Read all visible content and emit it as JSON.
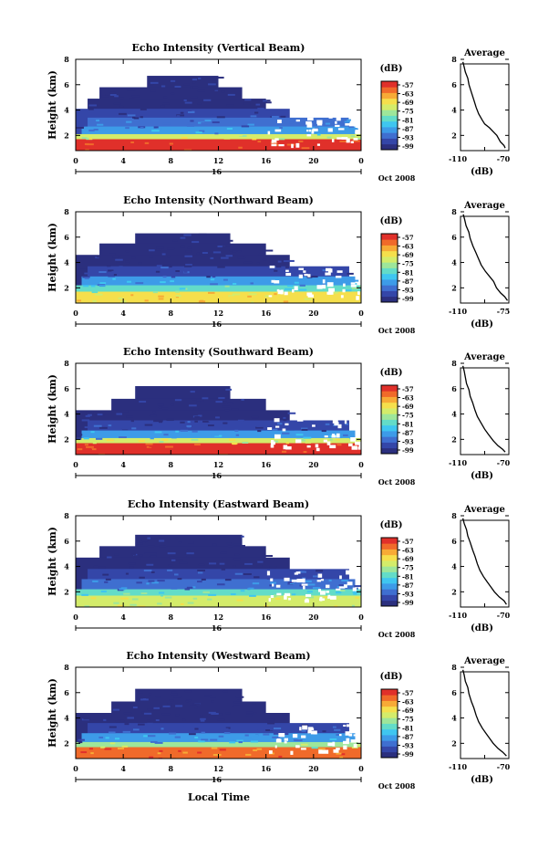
{
  "figure": {
    "bottom_xlabel": "Local Time"
  },
  "colors": {
    "colormap": [
      "#2b2f7e",
      "#3446a8",
      "#3f6fd0",
      "#3d9be8",
      "#3fc6f0",
      "#63dcc8",
      "#9ee69a",
      "#d4ec6a",
      "#f5df4c",
      "#f7aa36",
      "#f06a2a",
      "#e0302a"
    ]
  },
  "chart_data": [
    {
      "type": "heatmap",
      "title": "Echo Intensity (Vertical Beam)",
      "ylabel": "Height (km)",
      "xlabel": "Oct 2008",
      "x_ticks": [
        "0",
        "4",
        "8",
        "12",
        "16",
        "20",
        "0"
      ],
      "x_date": "16",
      "xlim": [
        0,
        24
      ],
      "y_ticks": [
        "2",
        "4",
        "6",
        "8"
      ],
      "ylim": [
        0.8,
        8
      ],
      "colorbar": {
        "unit": "(dB)",
        "ticks": [
          "-57",
          "-63",
          "-69",
          "-75",
          "-81",
          "-87",
          "-93",
          "-99"
        ]
      },
      "layers": [
        {
          "h": 1.0,
          "x0": 0,
          "x1": 24,
          "level": 11
        },
        {
          "h": 1.4,
          "x0": 0,
          "x1": 24,
          "level": 7
        },
        {
          "h": 2.0,
          "x0": 0.5,
          "x1": 23.5,
          "level": 3
        },
        {
          "h": 2.7,
          "x0": 1,
          "x1": 23,
          "level": 2
        },
        {
          "h": 3.4,
          "x0": 0,
          "x1": 18,
          "level": 1
        },
        {
          "h": 4.2,
          "x0": 1,
          "x1": 16,
          "level": 0
        },
        {
          "h": 5.1,
          "x0": 2,
          "x1": 14,
          "level": 0
        },
        {
          "h": 6.0,
          "x0": 6,
          "x1": 12,
          "level": 0
        }
      ]
    },
    {
      "type": "heatmap",
      "title": "Echo Intensity (Northward Beam)",
      "ylabel": "Height (km)",
      "xlabel": "Oct 2008",
      "x_ticks": [
        "0",
        "4",
        "8",
        "12",
        "16",
        "20",
        "0"
      ],
      "x_date": "16",
      "xlim": [
        0,
        24
      ],
      "y_ticks": [
        "2",
        "4",
        "6",
        "8"
      ],
      "ylim": [
        0.8,
        8
      ],
      "colorbar": {
        "unit": "(dB)",
        "ticks": [
          "-57",
          "-63",
          "-69",
          "-75",
          "-81",
          "-87",
          "-93",
          "-99"
        ]
      },
      "layers": [
        {
          "h": 1.0,
          "x0": 0,
          "x1": 24,
          "level": 8
        },
        {
          "h": 1.5,
          "x0": 0,
          "x1": 24,
          "level": 5
        },
        {
          "h": 2.2,
          "x0": 0.5,
          "x1": 23.5,
          "level": 3
        },
        {
          "h": 3.0,
          "x0": 1,
          "x1": 23,
          "level": 1
        },
        {
          "h": 3.9,
          "x0": 0,
          "x1": 18,
          "level": 0
        },
        {
          "h": 4.8,
          "x0": 2,
          "x1": 16,
          "level": 0
        },
        {
          "h": 5.6,
          "x0": 5,
          "x1": 13,
          "level": 0
        }
      ]
    },
    {
      "type": "heatmap",
      "title": "Echo Intensity (Southward Beam)",
      "ylabel": "Height (km)",
      "xlabel": "Oct 2008",
      "x_ticks": [
        "0",
        "4",
        "8",
        "12",
        "16",
        "20",
        "0"
      ],
      "x_date": "16",
      "xlim": [
        0,
        24
      ],
      "y_ticks": [
        "2",
        "4",
        "6",
        "8"
      ],
      "ylim": [
        0.8,
        8
      ],
      "colorbar": {
        "unit": "(dB)",
        "ticks": [
          "-57",
          "-63",
          "-69",
          "-75",
          "-81",
          "-87",
          "-93",
          "-99"
        ]
      },
      "layers": [
        {
          "h": 1.0,
          "x0": 0,
          "x1": 24,
          "level": 11
        },
        {
          "h": 1.4,
          "x0": 0,
          "x1": 24,
          "level": 7
        },
        {
          "h": 2.0,
          "x0": 0.5,
          "x1": 23.5,
          "level": 3
        },
        {
          "h": 2.8,
          "x0": 1,
          "x1": 23,
          "level": 1
        },
        {
          "h": 3.6,
          "x0": 0,
          "x1": 18,
          "level": 0
        },
        {
          "h": 4.5,
          "x0": 3,
          "x1": 16,
          "level": 0
        },
        {
          "h": 5.5,
          "x0": 5,
          "x1": 13,
          "level": 0
        }
      ]
    },
    {
      "type": "heatmap",
      "title": "Echo Intensity (Eastward Beam)",
      "ylabel": "Height (km)",
      "xlabel": "Oct 2008",
      "x_ticks": [
        "0",
        "4",
        "8",
        "12",
        "16",
        "20",
        "0"
      ],
      "x_date": "16",
      "xlim": [
        0,
        24
      ],
      "y_ticks": [
        "2",
        "4",
        "6",
        "8"
      ],
      "ylim": [
        0.8,
        8
      ],
      "colorbar": {
        "unit": "(dB)",
        "ticks": [
          "-57",
          "-63",
          "-69",
          "-75",
          "-81",
          "-87",
          "-93",
          "-99"
        ]
      },
      "layers": [
        {
          "h": 1.0,
          "x0": 0,
          "x1": 24,
          "level": 7
        },
        {
          "h": 1.5,
          "x0": 0,
          "x1": 24,
          "level": 5
        },
        {
          "h": 2.3,
          "x0": 0.5,
          "x1": 23.5,
          "level": 2
        },
        {
          "h": 3.1,
          "x0": 1,
          "x1": 23,
          "level": 1
        },
        {
          "h": 4.0,
          "x0": 0,
          "x1": 18,
          "level": 0
        },
        {
          "h": 4.9,
          "x0": 2,
          "x1": 16,
          "level": 0
        },
        {
          "h": 5.8,
          "x0": 5,
          "x1": 14,
          "level": 0
        }
      ]
    },
    {
      "type": "heatmap",
      "title": "Echo Intensity (Westward Beam)",
      "ylabel": "Height (km)",
      "xlabel": "Oct 2008",
      "x_ticks": [
        "0",
        "4",
        "8",
        "12",
        "16",
        "20",
        "0"
      ],
      "x_date": "16",
      "xlim": [
        0,
        24
      ],
      "y_ticks": [
        "2",
        "4",
        "6",
        "8"
      ],
      "ylim": [
        0.8,
        8
      ],
      "colorbar": {
        "unit": "(dB)",
        "ticks": [
          "-57",
          "-63",
          "-69",
          "-75",
          "-81",
          "-87",
          "-93",
          "-99"
        ]
      },
      "layers": [
        {
          "h": 1.0,
          "x0": 0,
          "x1": 24,
          "level": 10
        },
        {
          "h": 1.4,
          "x0": 0,
          "x1": 24,
          "level": 6
        },
        {
          "h": 2.1,
          "x0": 0.5,
          "x1": 23.5,
          "level": 3
        },
        {
          "h": 2.9,
          "x0": 1,
          "x1": 23,
          "level": 1
        },
        {
          "h": 3.7,
          "x0": 0,
          "x1": 18,
          "level": 0
        },
        {
          "h": 4.6,
          "x0": 3,
          "x1": 16,
          "level": 0
        },
        {
          "h": 5.6,
          "x0": 5,
          "x1": 14,
          "level": 0
        }
      ]
    },
    {
      "type": "line",
      "title": "Average",
      "xlabel": "(dB)",
      "x_ticks": [
        "-110",
        "-70"
      ],
      "xlim": [
        -110,
        -70
      ],
      "y_ticks": [
        "2",
        "4",
        "6",
        "8"
      ],
      "ylim": [
        0.8,
        8
      ],
      "x": [
        -73,
        -74,
        -77,
        -80,
        -83,
        -86,
        -90,
        -92,
        -95,
        -97,
        -99,
        -101,
        -103,
        -104,
        -106,
        -107,
        -108
      ],
      "y": [
        1.0,
        1.2,
        1.5,
        2.0,
        2.3,
        2.6,
        2.9,
        3.2,
        3.7,
        4.2,
        4.8,
        5.4,
        6.0,
        6.5,
        7.0,
        7.4,
        7.8
      ]
    },
    {
      "type": "line",
      "title": "Average",
      "xlabel": "(dB)",
      "x_ticks": [
        "-110",
        "-75"
      ],
      "xlim": [
        -110,
        -75
      ],
      "y_ticks": [
        "2",
        "4",
        "6",
        "8"
      ],
      "ylim": [
        0.8,
        8
      ],
      "x": [
        -76,
        -78,
        -81,
        -84,
        -86,
        -89,
        -92,
        -95,
        -97,
        -99,
        -101,
        -103,
        -104,
        -106,
        -107,
        -108
      ],
      "y": [
        1.0,
        1.3,
        1.6,
        2.0,
        2.5,
        2.9,
        3.3,
        3.8,
        4.3,
        4.8,
        5.3,
        5.9,
        6.4,
        6.9,
        7.4,
        7.8
      ]
    },
    {
      "type": "line",
      "title": "Average",
      "xlabel": "(dB)",
      "x_ticks": [
        "-110",
        "-70"
      ],
      "xlim": [
        -110,
        -70
      ],
      "y_ticks": [
        "2",
        "4",
        "6",
        "8"
      ],
      "ylim": [
        0.8,
        8
      ],
      "x": [
        -73,
        -75,
        -79,
        -83,
        -87,
        -90,
        -93,
        -96,
        -98,
        -100,
        -102,
        -103,
        -105,
        -106,
        -107,
        -108
      ],
      "y": [
        1.0,
        1.2,
        1.5,
        1.9,
        2.4,
        2.8,
        3.3,
        3.8,
        4.3,
        4.9,
        5.4,
        5.9,
        6.4,
        6.9,
        7.4,
        7.8
      ]
    },
    {
      "type": "line",
      "title": "Average",
      "xlabel": "(dB)",
      "x_ticks": [
        "-110",
        "-70"
      ],
      "xlim": [
        -110,
        -70
      ],
      "y_ticks": [
        "2",
        "4",
        "6",
        "8"
      ],
      "ylim": [
        0.8,
        8
      ],
      "x": [
        -72,
        -74,
        -78,
        -82,
        -85,
        -88,
        -91,
        -94,
        -96,
        -98,
        -100,
        -102,
        -104,
        -105,
        -107,
        -108
      ],
      "y": [
        1.0,
        1.3,
        1.6,
        2.0,
        2.4,
        2.8,
        3.2,
        3.7,
        4.2,
        4.8,
        5.3,
        5.9,
        6.4,
        6.9,
        7.4,
        7.8
      ]
    },
    {
      "type": "line",
      "title": "Average",
      "xlabel": "(dB)",
      "x_ticks": [
        "-110",
        "-70"
      ],
      "xlim": [
        -110,
        -70
      ],
      "y_ticks": [
        "2",
        "4",
        "6",
        "8"
      ],
      "ylim": [
        0.8,
        8
      ],
      "x": [
        -72,
        -75,
        -79,
        -83,
        -86,
        -89,
        -92,
        -95,
        -97,
        -99,
        -101,
        -103,
        -104,
        -106,
        -107,
        -108
      ],
      "y": [
        1.0,
        1.3,
        1.6,
        2.0,
        2.4,
        2.8,
        3.2,
        3.7,
        4.2,
        4.8,
        5.3,
        5.9,
        6.4,
        6.9,
        7.4,
        7.8
      ]
    }
  ]
}
